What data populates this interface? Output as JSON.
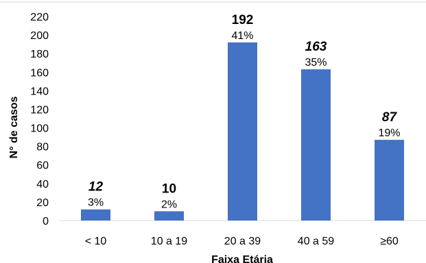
{
  "chart_data": {
    "type": "bar",
    "categories": [
      "< 10",
      "10 a 19",
      "20 a 39",
      "40 a 59",
      "≥60"
    ],
    "values": [
      12,
      10,
      192,
      163,
      87
    ],
    "value_labels": [
      "12",
      "10",
      "192",
      "163",
      "87"
    ],
    "value_label_italic": [
      true,
      false,
      false,
      true,
      true
    ],
    "percent_labels": [
      "3%",
      "2%",
      "41%",
      "35%",
      "19%"
    ],
    "xlabel": "Faixa Etária",
    "ylabel": "N° de casos",
    "ylim": [
      0,
      220
    ],
    "yticks": [
      0,
      20,
      40,
      60,
      80,
      100,
      120,
      140,
      160,
      180,
      200,
      220
    ],
    "grid": false,
    "bar_color": "#4472c4",
    "axis_color": "#d9d9d9"
  }
}
